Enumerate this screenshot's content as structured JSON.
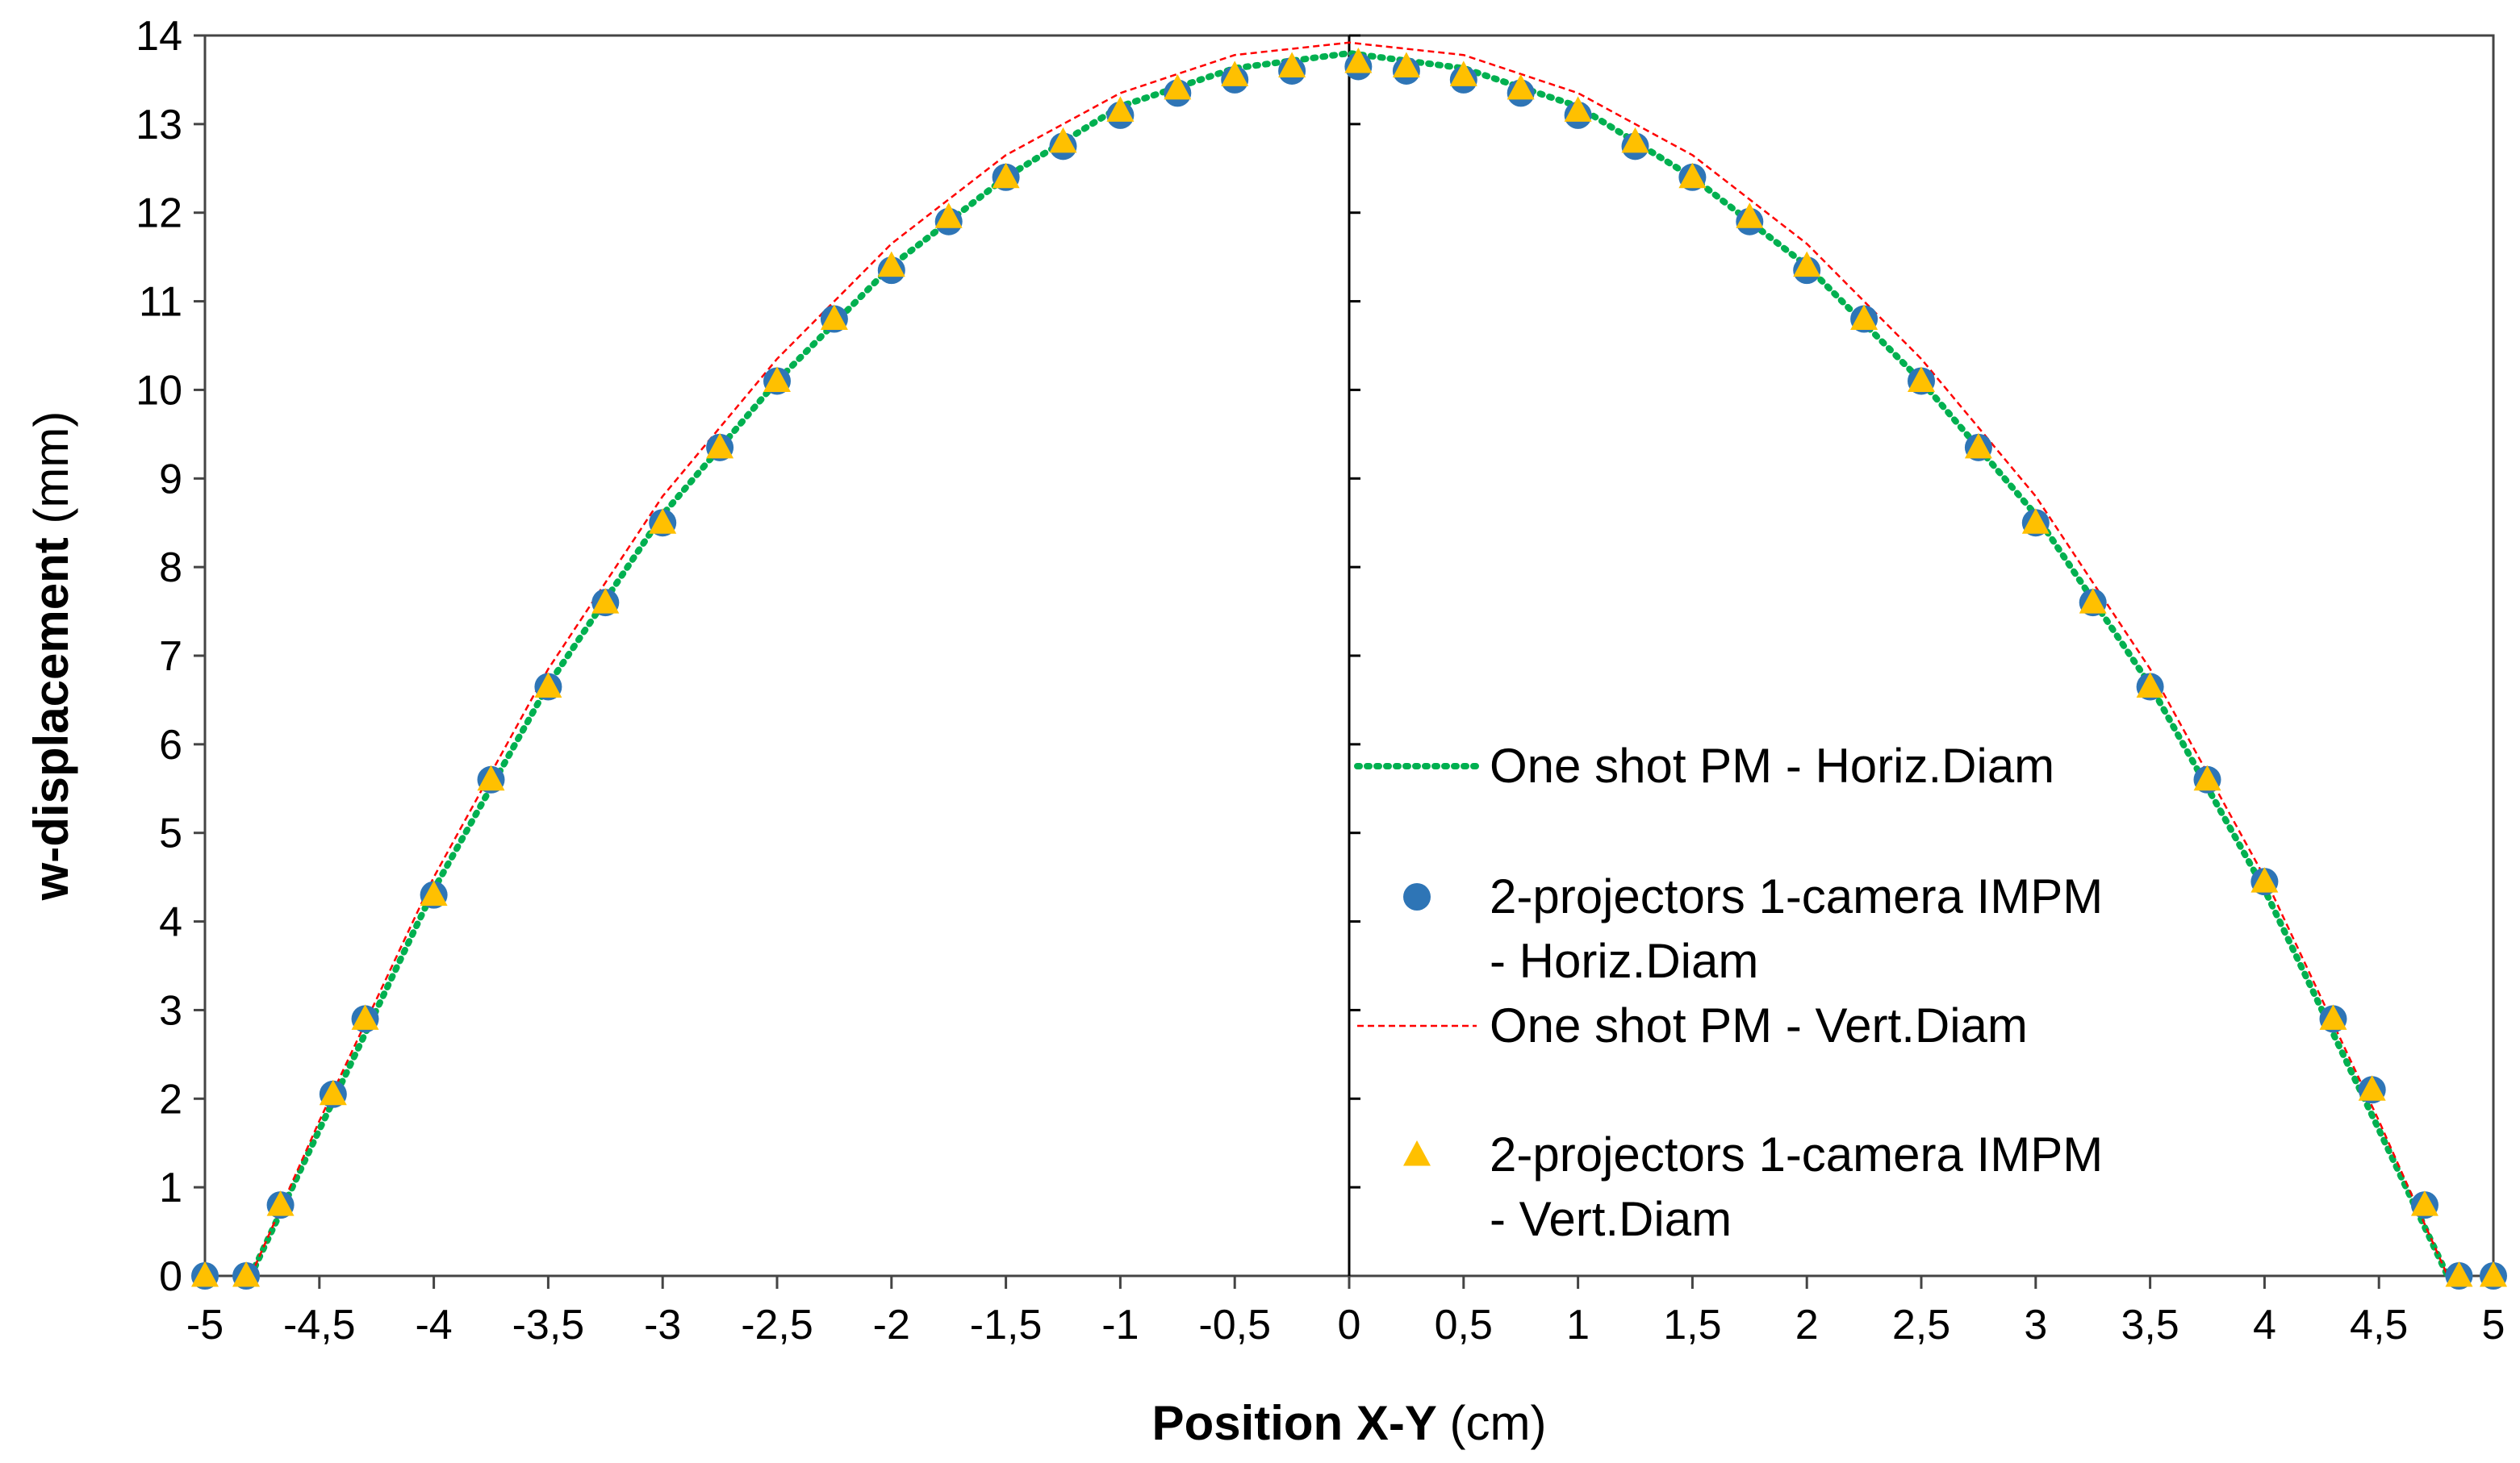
{
  "chart_data": {
    "type": "scatter",
    "xlabel": "Position X-Y",
    "xunit": "(cm)",
    "ylabel": "w-displacement",
    "yunit": "(mm)",
    "xlim": [
      -5,
      5
    ],
    "ylim": [
      0,
      14
    ],
    "xticks": [
      -5,
      -4.5,
      -4,
      -3.5,
      -3,
      -2.5,
      -2,
      -1.5,
      -1,
      -0.5,
      0,
      0.5,
      1,
      1.5,
      2,
      2.5,
      3,
      3.5,
      4,
      4.5,
      5
    ],
    "xtick_labels": [
      "-5",
      "-4,5",
      "-4",
      "-3,5",
      "-3",
      "-2,5",
      "-2",
      "-1,5",
      "-1",
      "-0,5",
      "0",
      "0,5",
      "1",
      "1,5",
      "2",
      "2,5",
      "3",
      "3,5",
      "4",
      "4,5",
      "5"
    ],
    "yticks": [
      0,
      1,
      2,
      3,
      4,
      5,
      6,
      7,
      8,
      9,
      10,
      11,
      12,
      13,
      14
    ],
    "ytick_labels": [
      "0",
      "1",
      "2",
      "3",
      "4",
      "5",
      "6",
      "7",
      "8",
      "9",
      "10",
      "11",
      "12",
      "13",
      "14"
    ],
    "grid": false,
    "legend_position": "right",
    "series": [
      {
        "name": "One shot PM - Horiz.Diam",
        "style": "dotted-line",
        "color": "#00b050",
        "x": [
          -4.8,
          -4.5,
          -4.0,
          -3.5,
          -3.0,
          -2.5,
          -2.0,
          -1.5,
          -1.0,
          -0.5,
          0.0,
          0.5,
          1.0,
          1.5,
          2.0,
          2.5,
          3.0,
          3.5,
          4.0,
          4.5,
          4.8
        ],
        "y": [
          0.0,
          1.65,
          4.36,
          6.67,
          8.59,
          10.1,
          11.4,
          12.4,
          13.2,
          13.63,
          13.8,
          13.63,
          13.2,
          12.4,
          11.4,
          10.1,
          8.59,
          6.67,
          4.36,
          1.65,
          0.0
        ]
      },
      {
        "name": "2-projectors 1-camera IMPM - Horiz.Diam",
        "style": "circle-marker",
        "color": "#2e75b6",
        "x": [
          -5.0,
          -4.82,
          -4.67,
          -4.44,
          -4.3,
          -4.0,
          -3.75,
          -3.5,
          -3.25,
          -3.0,
          -2.75,
          -2.5,
          -2.25,
          -2.0,
          -1.75,
          -1.5,
          -1.25,
          -1.0,
          -0.75,
          -0.5,
          -0.25,
          0.04,
          0.25,
          0.5,
          0.75,
          1.0,
          1.25,
          1.5,
          1.75,
          2.0,
          2.25,
          2.5,
          2.75,
          3.0,
          3.25,
          3.5,
          3.75,
          4.0,
          4.3,
          4.47,
          4.7,
          4.85,
          5.0
        ],
        "y": [
          0.0,
          0.0,
          0.8,
          2.05,
          2.9,
          4.3,
          5.6,
          6.65,
          7.6,
          8.5,
          9.35,
          10.1,
          10.8,
          11.35,
          11.9,
          12.4,
          12.75,
          13.1,
          13.35,
          13.5,
          13.6,
          13.65,
          13.6,
          13.5,
          13.35,
          13.1,
          12.75,
          12.4,
          11.9,
          11.35,
          10.8,
          10.1,
          9.35,
          8.5,
          7.6,
          6.65,
          5.6,
          4.45,
          2.9,
          2.1,
          0.8,
          0.0,
          0.0
        ]
      },
      {
        "name": "One shot PM - Vert.Diam",
        "style": "dashed-line",
        "color": "#ff0000",
        "x": [
          -4.8,
          -4.5,
          -4.0,
          -3.5,
          -3.0,
          -2.5,
          -2.0,
          -1.5,
          -1.0,
          -0.5,
          0.0,
          0.5,
          1.0,
          1.5,
          2.0,
          2.5,
          3.0,
          3.5,
          4.0,
          4.5,
          4.8
        ],
        "y": [
          0.0,
          1.75,
          4.5,
          6.85,
          8.8,
          10.35,
          11.65,
          12.65,
          13.35,
          13.78,
          13.92,
          13.78,
          13.35,
          12.65,
          11.65,
          10.35,
          8.8,
          6.85,
          4.5,
          1.75,
          0.0
        ]
      },
      {
        "name": "2-projectors 1-camera IMPM - Vert.Diam",
        "style": "triangle-marker",
        "color": "#ffc000",
        "x": [
          -5.0,
          -4.82,
          -4.67,
          -4.44,
          -4.3,
          -4.0,
          -3.75,
          -3.5,
          -3.25,
          -3.0,
          -2.75,
          -2.5,
          -2.25,
          -2.0,
          -1.75,
          -1.5,
          -1.25,
          -1.0,
          -0.75,
          -0.5,
          -0.25,
          0.04,
          0.25,
          0.5,
          0.75,
          1.0,
          1.25,
          1.5,
          1.75,
          2.0,
          2.25,
          2.5,
          2.75,
          3.0,
          3.25,
          3.5,
          3.75,
          4.0,
          4.3,
          4.47,
          4.7,
          4.85,
          5.0
        ],
        "y": [
          0.0,
          0.0,
          0.8,
          2.05,
          2.9,
          4.3,
          5.6,
          6.65,
          7.6,
          8.5,
          9.35,
          10.1,
          10.8,
          11.4,
          11.95,
          12.4,
          12.8,
          13.15,
          13.4,
          13.55,
          13.65,
          13.7,
          13.65,
          13.55,
          13.4,
          13.15,
          12.8,
          12.4,
          11.95,
          11.4,
          10.8,
          10.1,
          9.35,
          8.5,
          7.6,
          6.65,
          5.6,
          4.45,
          2.9,
          2.1,
          0.8,
          0.0,
          0.0
        ]
      }
    ]
  }
}
